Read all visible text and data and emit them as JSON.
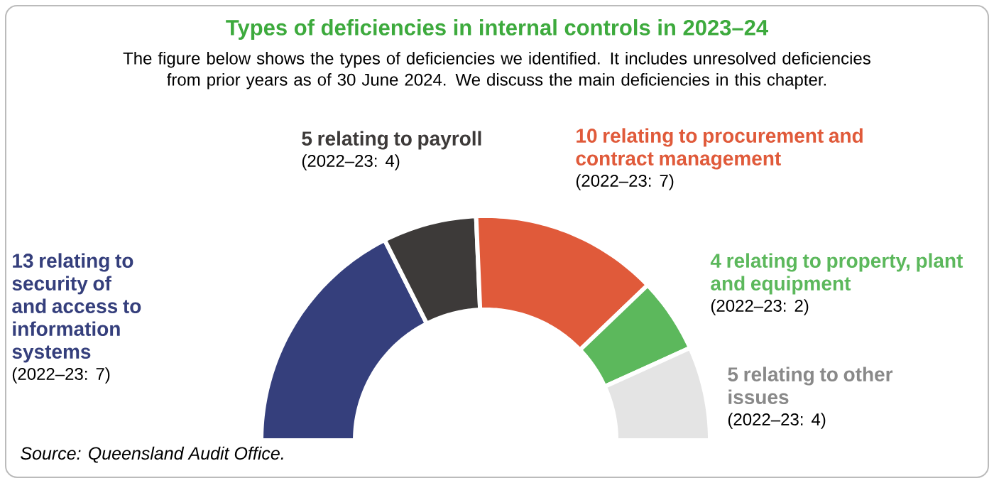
{
  "chart_data": {
    "type": "donut",
    "title": "Types of deficiencies in internal controls in 2023–24",
    "subtitle": "The figure below shows the types of deficiencies we identified. It includes unresolved deficiencies from prior years as of 30 June 2024. We discuss the main deficiencies in this chapter.",
    "categories": [
      "13 relating to security of and access to information systems",
      "5 relating to payroll",
      "10 relating to procurement and contract management",
      "4 relating to property, plant and equipment",
      "5 relating to other issues"
    ],
    "values": [
      13,
      5,
      10,
      4,
      5
    ],
    "colors": [
      "#353f7c",
      "#3d3a39",
      "#e05a3a",
      "#5cb85c",
      "#e4e4e4"
    ],
    "annotations": [
      "(2022–23: 7)",
      "(2022–23: 4)",
      "(2022–23: 7)",
      "(2022–23: 2)",
      "(2022–23: 4)",
      "Source: Queensland Audit Office."
    ]
  }
}
